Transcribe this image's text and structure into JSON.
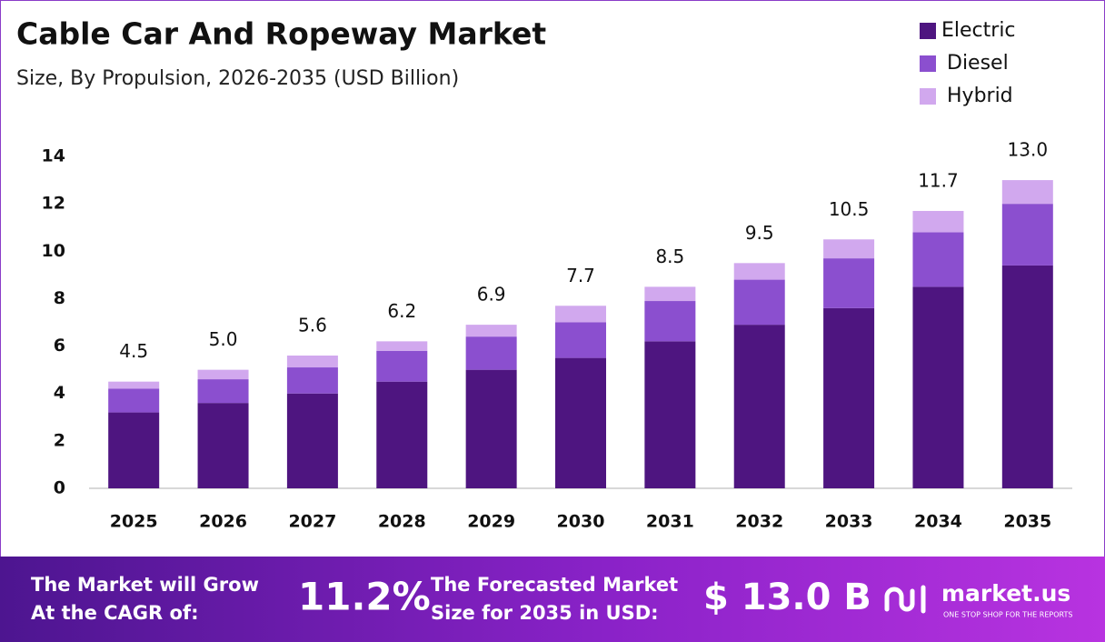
{
  "chart_data": {
    "type": "stacked_bar",
    "title": "Cable Car And Ropeway Market",
    "subtitle": "Size, By Propulsion, 2026-2035 (USD Billion)",
    "categories": [
      "2025",
      "2026",
      "2027",
      "2028",
      "2029",
      "2030",
      "2031",
      "2032",
      "2033",
      "2034",
      "2035"
    ],
    "series": [
      {
        "name": "Electric",
        "color": "#4e1580",
        "values": [
          3.2,
          3.6,
          4.0,
          4.5,
          5.0,
          5.5,
          6.2,
          6.9,
          7.6,
          8.5,
          9.4
        ]
      },
      {
        "name": "Diesel",
        "color": "#8b4fcf",
        "values": [
          1.0,
          1.0,
          1.1,
          1.3,
          1.4,
          1.5,
          1.7,
          1.9,
          2.1,
          2.3,
          2.6
        ]
      },
      {
        "name": "Hybrid",
        "color": "#d1a8ee",
        "values": [
          0.3,
          0.4,
          0.5,
          0.4,
          0.5,
          0.7,
          0.6,
          0.7,
          0.8,
          0.9,
          1.0
        ]
      }
    ],
    "totals": [
      4.5,
      5,
      5.6,
      6.2,
      6.9,
      7.7,
      8.5,
      9.5,
      10.5,
      11.7,
      13
    ],
    "total_labels": [
      "4.5",
      "5.0",
      "5.6",
      "6.2",
      "6.9",
      "7.7",
      "8.5",
      "9.5",
      "10.5",
      "11.7",
      "13.0"
    ],
    "ylim": [
      0,
      14
    ],
    "yticks": [
      0,
      2,
      4,
      6,
      8,
      10,
      12,
      14
    ],
    "grid": false,
    "legend": "top-right"
  },
  "footer": {
    "cagr_text": [
      "The Market will Grow",
      "At the CAGR of:"
    ],
    "cagr": "11.2%",
    "forecast_text": [
      "The Forecasted Market",
      "Size for 2035 in USD:"
    ],
    "forecast": "$ 13.0 B",
    "brand": "market.us",
    "tagline": "ONE STOP SHOP FOR THE REPORTS"
  }
}
